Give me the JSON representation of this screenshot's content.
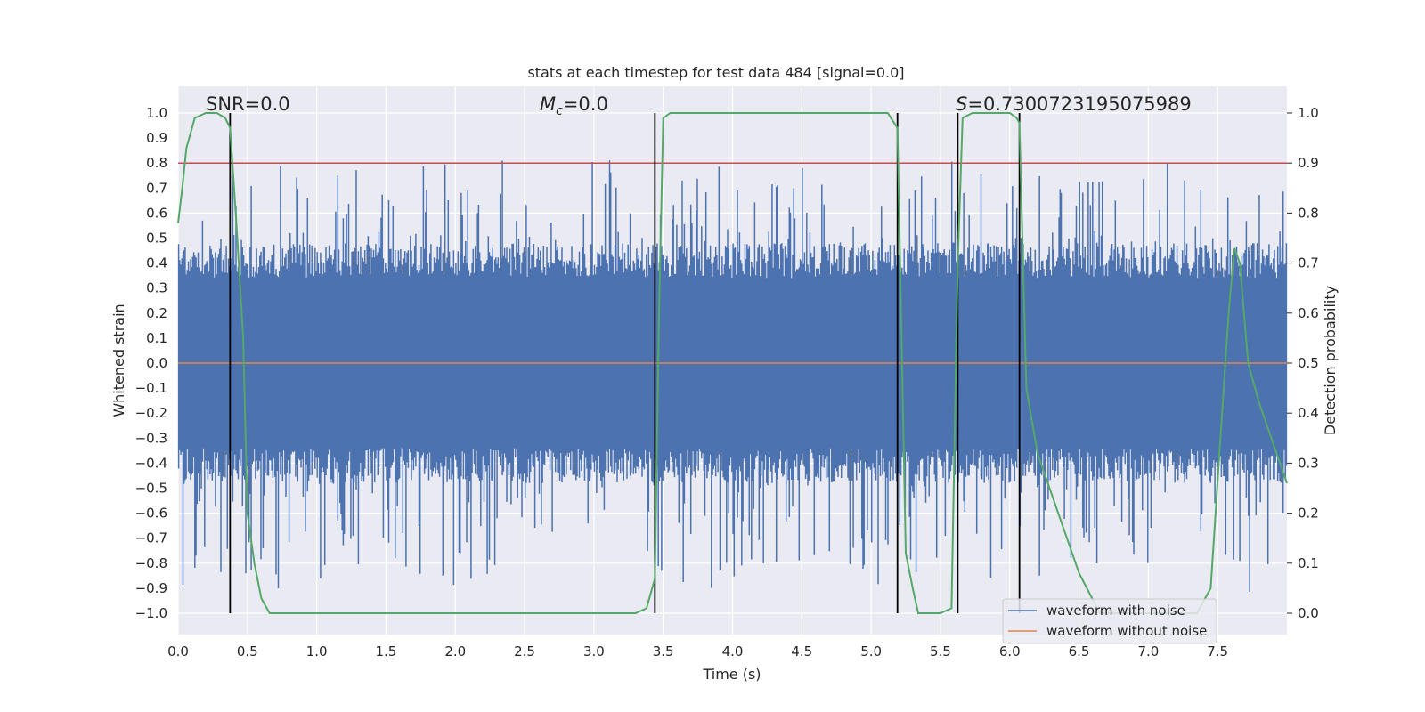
{
  "chart_data": {
    "type": "line",
    "title": "stats at each timestep for test data 484 [signal=0.0]",
    "xlabel": "Time (s)",
    "ylabel": "Whitened strain",
    "ylabel_right": "Detection probability",
    "xlim": [
      0.0,
      8.0
    ],
    "ylim": [
      -1.1,
      1.1
    ],
    "ylim_right": [
      -0.05,
      1.05
    ],
    "xticks": [
      0.0,
      0.5,
      1.0,
      1.5,
      2.0,
      2.5,
      3.0,
      3.5,
      4.0,
      4.5,
      5.0,
      5.5,
      6.0,
      6.5,
      7.0,
      7.5
    ],
    "xtick_labels": [
      "0.0",
      "0.5",
      "1.0",
      "1.5",
      "2.0",
      "2.5",
      "3.0",
      "3.5",
      "4.0",
      "4.5",
      "5.0",
      "5.5",
      "6.0",
      "6.5",
      "7.0",
      "7.5"
    ],
    "yticks": [
      -1.0,
      -0.9,
      -0.8,
      -0.7,
      -0.6,
      -0.5,
      -0.4,
      -0.3,
      -0.2,
      -0.1,
      0.0,
      0.1,
      0.2,
      0.3,
      0.4,
      0.5,
      0.6,
      0.7,
      0.8,
      0.9,
      1.0
    ],
    "ytick_labels": [
      "−1.0",
      "−0.9",
      "−0.8",
      "−0.7",
      "−0.6",
      "−0.5",
      "−0.4",
      "−0.3",
      "−0.2",
      "−0.1",
      "0.0",
      "0.1",
      "0.2",
      "0.3",
      "0.4",
      "0.5",
      "0.6",
      "0.7",
      "0.8",
      "0.9",
      "1.0"
    ],
    "yticks_right": [
      0.0,
      0.1,
      0.2,
      0.3,
      0.4,
      0.5,
      0.6,
      0.7,
      0.8,
      0.9,
      1.0
    ],
    "ytick_labels_right": [
      "0.0",
      "0.1",
      "0.2",
      "0.3",
      "0.4",
      "0.5",
      "0.6",
      "0.7",
      "0.8",
      "0.9",
      "1.0"
    ],
    "annotations": {
      "snr": "SNR=0.0",
      "mc_symbol": "M",
      "mc_sub": "c",
      "mc_value": "=0.0",
      "s_symbol": "S",
      "s_value": "=0.7300723195075989"
    },
    "threshold": {
      "y_right": 0.9,
      "color": "#c44e52"
    },
    "segment_boundaries_s": [
      0.375,
      3.44,
      5.19,
      5.625,
      6.07
    ],
    "noise_series": {
      "name": "waveform with noise",
      "color": "#4c72b0",
      "sample_count": 1024,
      "typical_abs_amplitude": 0.4,
      "min_value": -0.98,
      "max_value": 1.0
    },
    "clean_series": {
      "name": "waveform without noise",
      "color": "#dd8452",
      "value": 0.0
    },
    "probability_series": {
      "name": "Detection probability",
      "color": "#55a868",
      "axis": "right",
      "x": [
        0.0,
        0.03,
        0.06,
        0.12,
        0.2,
        0.28,
        0.34,
        0.375,
        0.42,
        0.47,
        0.5,
        0.55,
        0.6,
        0.66,
        0.75,
        1.0,
        1.5,
        2.0,
        2.5,
        3.0,
        3.3,
        3.38,
        3.44,
        3.47,
        3.5,
        3.55,
        3.7,
        4.0,
        4.5,
        5.0,
        5.12,
        5.19,
        5.25,
        5.3,
        5.34,
        5.4,
        5.5,
        5.58,
        5.625,
        5.66,
        5.73,
        5.8,
        5.9,
        6.0,
        6.05,
        6.07,
        6.12,
        6.2,
        6.35,
        6.5,
        6.65,
        7.0,
        7.2,
        7.35,
        7.45,
        7.52,
        7.58,
        7.62,
        7.66,
        7.72,
        7.8,
        7.95,
        8.0
      ],
      "values": [
        0.78,
        0.85,
        0.93,
        0.99,
        1.0,
        1.0,
        0.99,
        0.97,
        0.78,
        0.55,
        0.2,
        0.1,
        0.03,
        0.0,
        0.0,
        0.0,
        0.0,
        0.0,
        0.0,
        0.0,
        0.0,
        0.01,
        0.07,
        0.6,
        0.99,
        1.0,
        1.0,
        1.0,
        1.0,
        1.0,
        1.0,
        0.97,
        0.12,
        0.05,
        0.0,
        0.0,
        0.0,
        0.01,
        0.7,
        0.99,
        1.0,
        1.0,
        1.0,
        1.0,
        0.99,
        0.98,
        0.45,
        0.32,
        0.2,
        0.08,
        0.0,
        0.0,
        0.0,
        0.0,
        0.05,
        0.35,
        0.6,
        0.73,
        0.7,
        0.5,
        0.42,
        0.3,
        0.26
      ]
    },
    "legend": {
      "location": "bottom-right",
      "entries": [
        "waveform with noise",
        "waveform without noise"
      ]
    }
  }
}
